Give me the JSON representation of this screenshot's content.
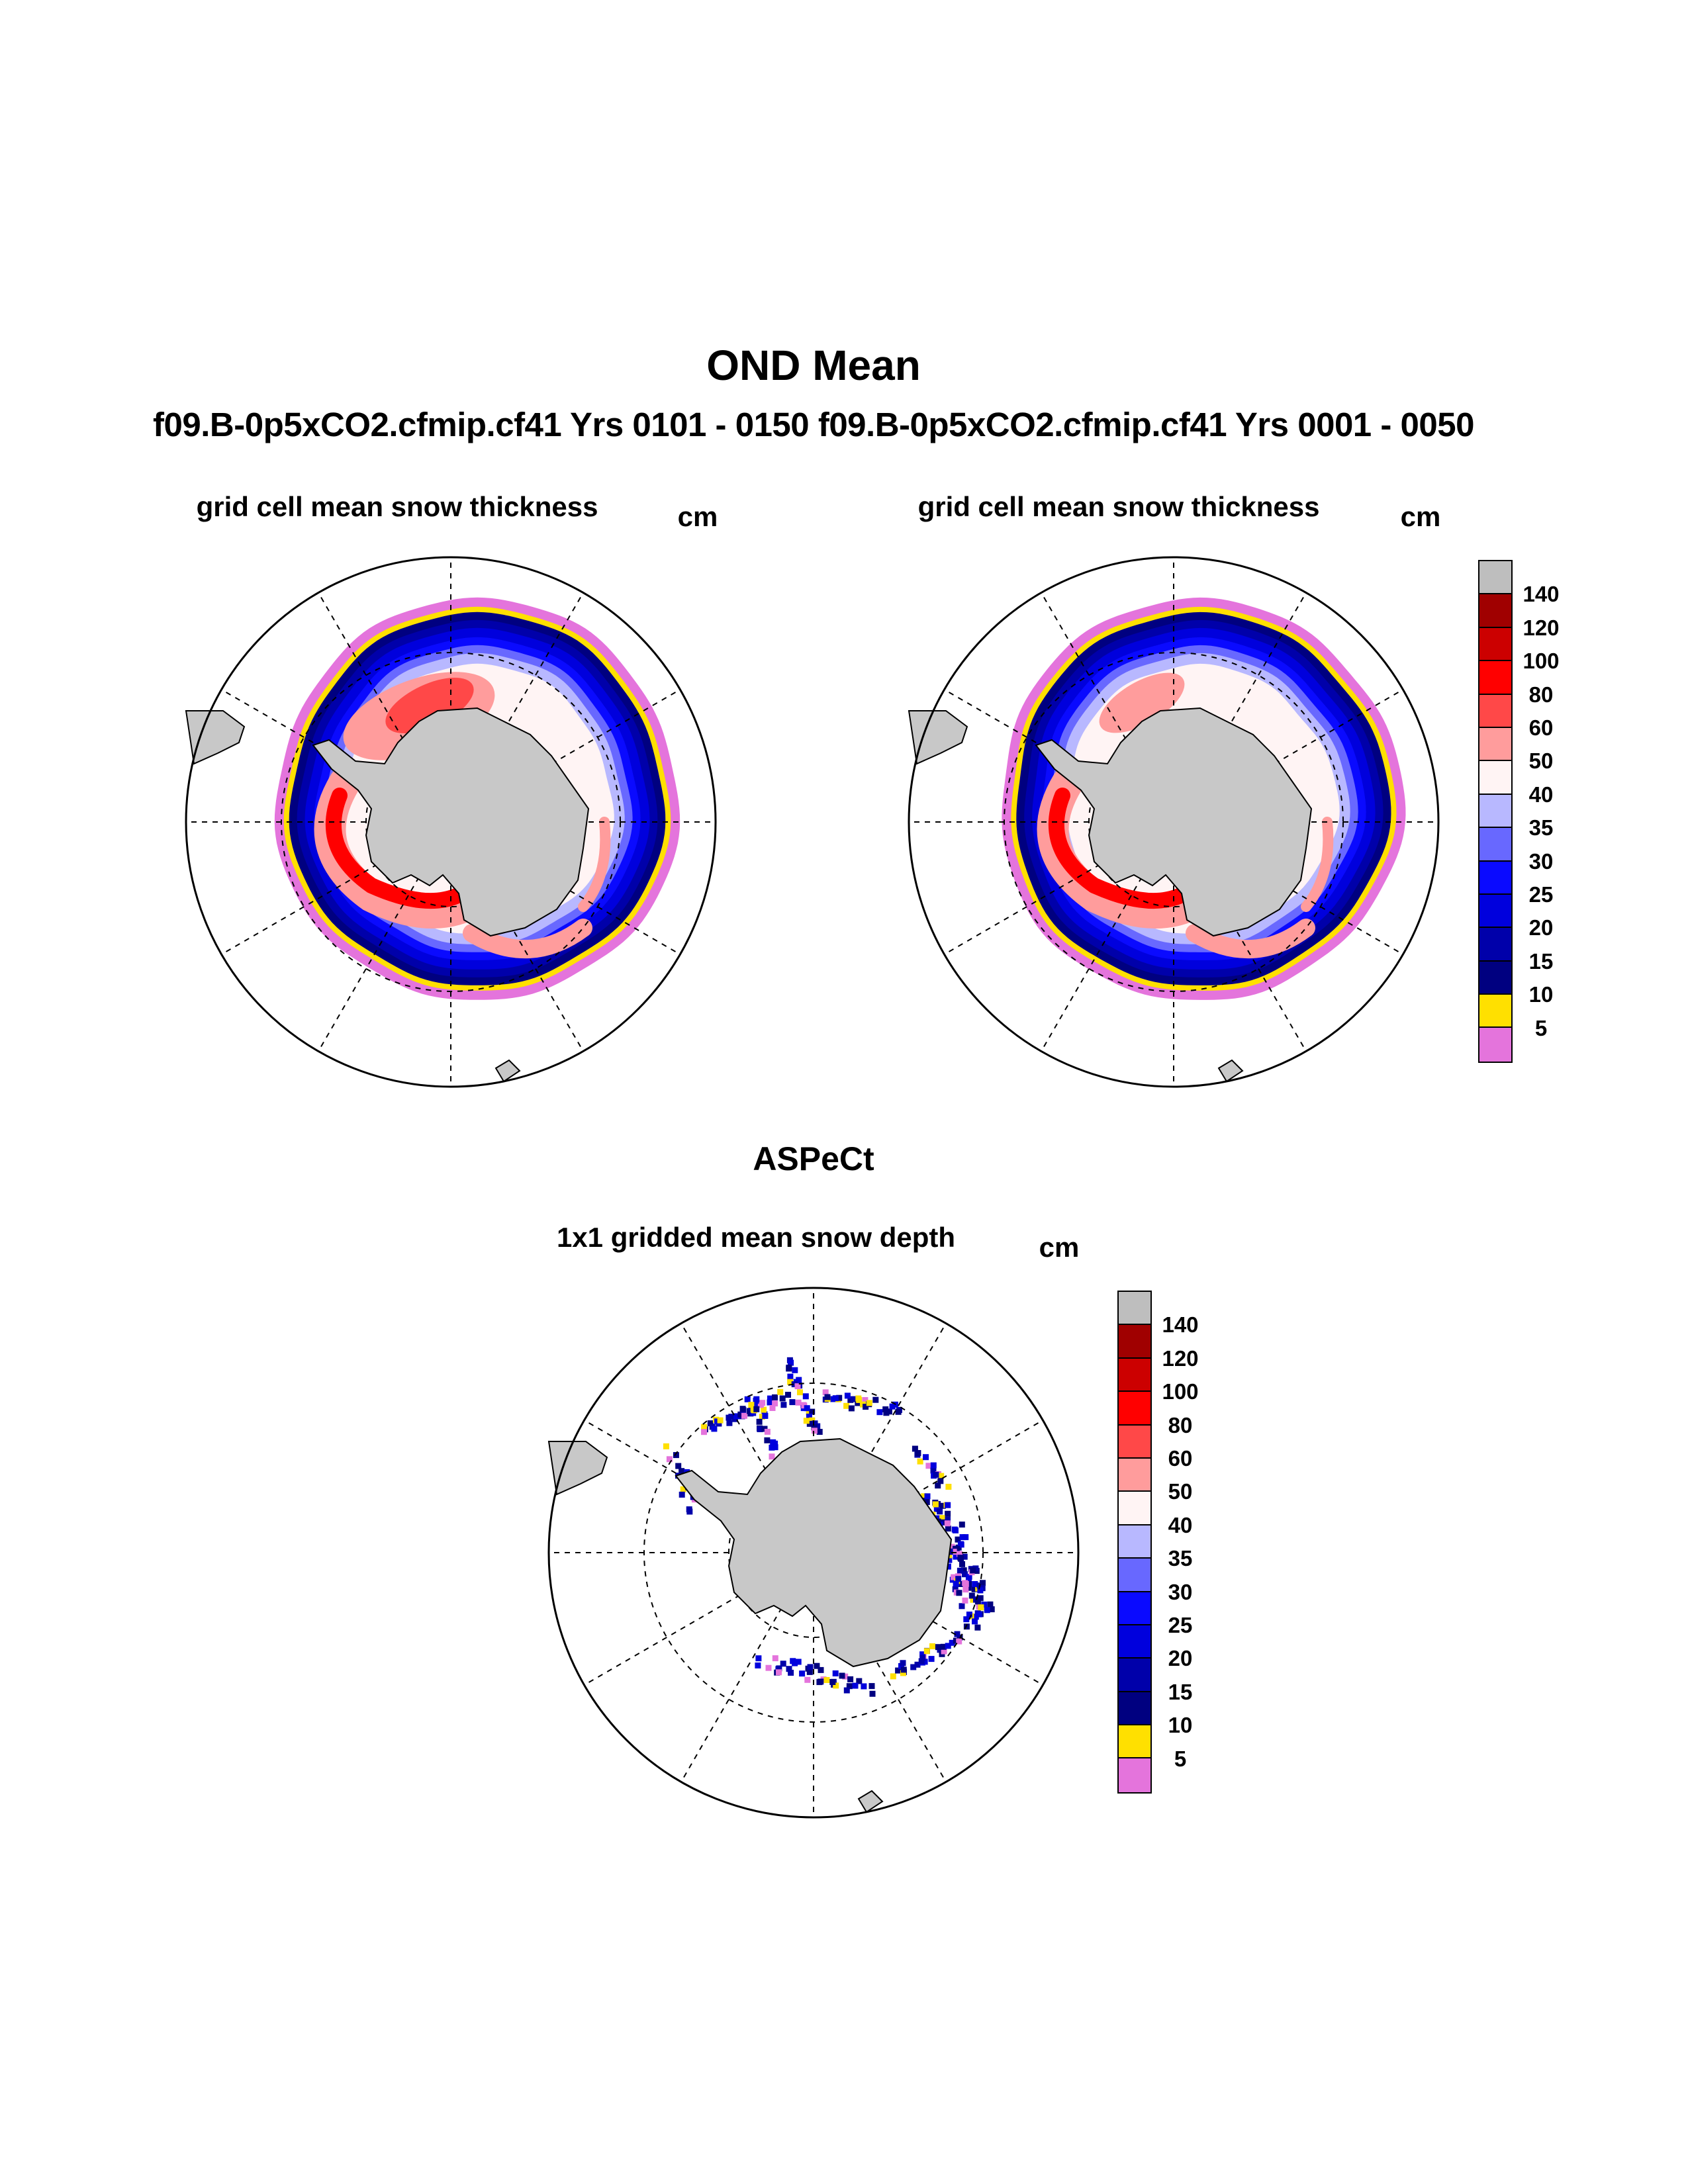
{
  "title": "OND Mean",
  "subtitle": "f09.B-0p5xCO2.cfmip.cf41  Yrs 0101 - 0150 f09.B-0p5xCO2.cfmip.cf41  Yrs 0001 - 0050",
  "panels": [
    {
      "title": "grid cell mean snow thickness",
      "units": "cm"
    },
    {
      "title": "grid cell mean snow thickness",
      "units": "cm"
    }
  ],
  "obs": {
    "section_title": "ASPeCt",
    "title": "1x1 gridded mean snow depth",
    "units": "cm"
  },
  "chart_data": {
    "type": "heatmap",
    "projection": "south polar stereographic",
    "colorbar": {
      "levels": [
        "140",
        "120",
        "100",
        "80",
        "60",
        "50",
        "40",
        "35",
        "30",
        "25",
        "20",
        "15",
        "10",
        "5"
      ],
      "colors": [
        "#bebebe",
        "#a00000",
        "#cc0000",
        "#ff0000",
        "#ff4848",
        "#ff9c9c",
        "#fff4f4",
        "#b8b8ff",
        "#6868ff",
        "#0a0aff",
        "#0000dd",
        "#0000aa",
        "#000080",
        "#ffe000",
        "#e474dc"
      ]
    },
    "land_color": "#c8c8c8"
  }
}
